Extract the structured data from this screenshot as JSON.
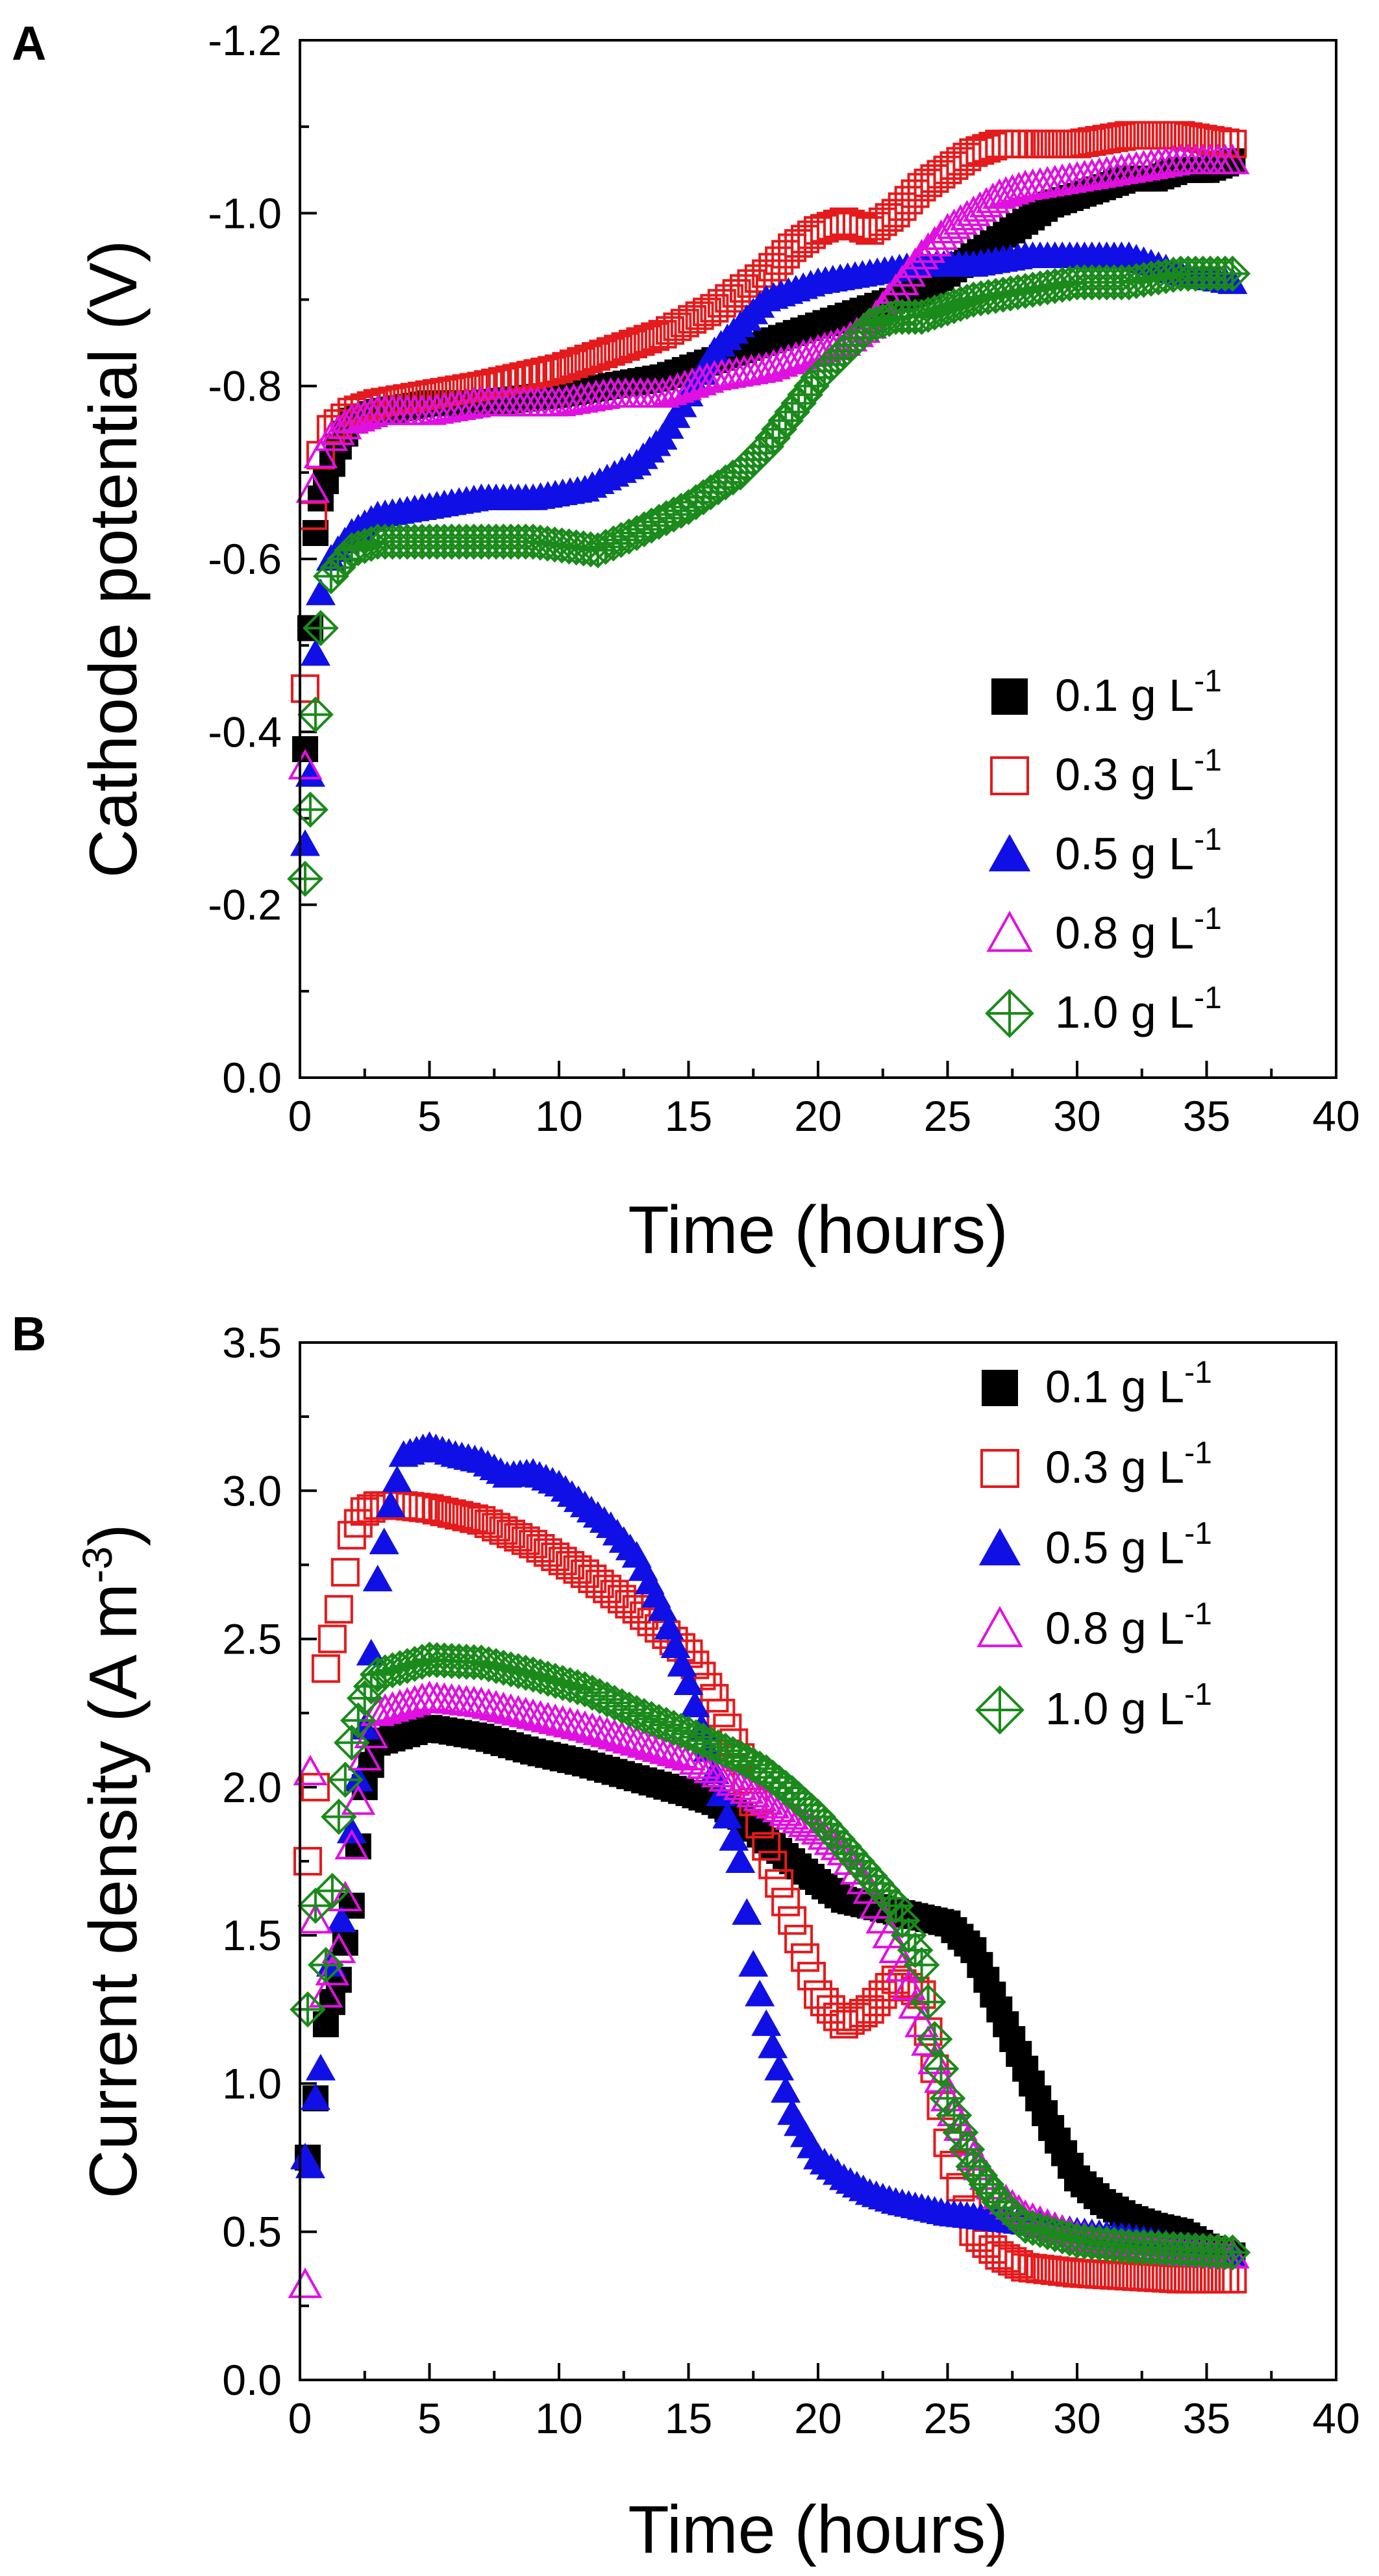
{
  "chart_data": [
    {
      "type": "scatter",
      "panel_label": "A",
      "title": "",
      "xlabel": "Time (hours)",
      "ylabel": "Cathode potential (V)",
      "xlim": [
        0,
        40
      ],
      "ylim": [
        0,
        -1.2
      ],
      "y_inverted": true,
      "xticks": [
        0,
        5,
        10,
        15,
        20,
        25,
        30,
        35,
        40
      ],
      "xtick_labels": [
        "0",
        "5",
        "10",
        "15",
        "20",
        "25",
        "30",
        "35",
        "40"
      ],
      "yticks": [
        0,
        -0.2,
        -0.4,
        -0.6,
        -0.8,
        -1.0,
        -1.2
      ],
      "ytick_labels": [
        "0.0",
        "-0.2",
        "-0.4",
        "-0.6",
        "-0.8",
        "-1.0",
        "-1.2"
      ],
      "legend_position": "lower-right",
      "series": [
        {
          "name": "0.1 g L",
          "superscript": "-1",
          "marker": "filled-square",
          "color": "#000000",
          "x": [
            0.2,
            0.4,
            0.6,
            0.8,
            1.0,
            1.5,
            2,
            3,
            5,
            7,
            10,
            12,
            14,
            16,
            18,
            20,
            22,
            24,
            25,
            26,
            27,
            28,
            29,
            30,
            31,
            32,
            33,
            34,
            35,
            36
          ],
          "y": [
            -0.38,
            -0.52,
            -0.63,
            -0.67,
            -0.69,
            -0.73,
            -0.76,
            -0.77,
            -0.78,
            -0.78,
            -0.79,
            -0.8,
            -0.81,
            -0.83,
            -0.85,
            -0.87,
            -0.89,
            -0.91,
            -0.93,
            -0.95,
            -0.97,
            -0.99,
            -1.01,
            -1.02,
            -1.03,
            -1.04,
            -1.04,
            -1.05,
            -1.05,
            -1.06
          ]
        },
        {
          "name": "0.3 g L",
          "superscript": "-1",
          "marker": "open-square",
          "color": "#e41a1c",
          "x": [
            0.2,
            0.5,
            0.8,
            1.2,
            2,
            3,
            5,
            7,
            10,
            12,
            14,
            16,
            18,
            19,
            20,
            21,
            22,
            23,
            24,
            25,
            26,
            27,
            28,
            30,
            32,
            34,
            36
          ],
          "y": [
            -0.45,
            -0.65,
            -0.72,
            -0.75,
            -0.77,
            -0.78,
            -0.79,
            -0.8,
            -0.82,
            -0.84,
            -0.86,
            -0.89,
            -0.93,
            -0.96,
            -0.98,
            -0.99,
            -0.98,
            -1.0,
            -1.03,
            -1.05,
            -1.07,
            -1.08,
            -1.08,
            -1.08,
            -1.09,
            -1.09,
            -1.08
          ]
        },
        {
          "name": "0.5 g L",
          "superscript": "-1",
          "marker": "filled-triangle",
          "color": "#1010e6",
          "x": [
            0.2,
            0.4,
            0.6,
            0.8,
            1.2,
            2,
            3,
            5,
            7,
            9,
            11,
            13,
            14,
            15,
            16,
            17,
            18,
            20,
            22,
            24,
            26,
            28,
            30,
            32,
            34,
            36
          ],
          "y": [
            -0.27,
            -0.35,
            -0.49,
            -0.56,
            -0.6,
            -0.63,
            -0.65,
            -0.66,
            -0.67,
            -0.67,
            -0.68,
            -0.71,
            -0.74,
            -0.79,
            -0.84,
            -0.87,
            -0.9,
            -0.92,
            -0.93,
            -0.94,
            -0.94,
            -0.95,
            -0.95,
            -0.95,
            -0.93,
            -0.92
          ]
        },
        {
          "name": "0.8 g L",
          "superscript": "-1",
          "marker": "open-triangle",
          "color": "#e010e0",
          "x": [
            0.2,
            0.5,
            0.8,
            1.2,
            2,
            3,
            5,
            7,
            10,
            12,
            14,
            16,
            18,
            20,
            21,
            22,
            23,
            24,
            25,
            26,
            27,
            28,
            30,
            32,
            34,
            36
          ],
          "y": [
            -0.36,
            -0.68,
            -0.72,
            -0.74,
            -0.76,
            -0.77,
            -0.77,
            -0.78,
            -0.78,
            -0.79,
            -0.79,
            -0.81,
            -0.82,
            -0.84,
            -0.85,
            -0.87,
            -0.91,
            -0.95,
            -0.98,
            -1.0,
            -1.02,
            -1.03,
            -1.04,
            -1.05,
            -1.06,
            -1.06
          ]
        },
        {
          "name": "1.0 g L",
          "superscript": "-1",
          "marker": "open-diamond-cross",
          "color": "#1a8a1a",
          "x": [
            0.2,
            0.4,
            0.6,
            0.8,
            1.2,
            2,
            3,
            5,
            7,
            9,
            11.5,
            13,
            15,
            17,
            18,
            19,
            20,
            21,
            22,
            23,
            24,
            25,
            26,
            28,
            30,
            32,
            34,
            36
          ],
          "y": [
            -0.23,
            -0.31,
            -0.42,
            -0.52,
            -0.58,
            -0.61,
            -0.62,
            -0.62,
            -0.62,
            -0.62,
            -0.61,
            -0.63,
            -0.66,
            -0.7,
            -0.73,
            -0.77,
            -0.81,
            -0.84,
            -0.87,
            -0.88,
            -0.88,
            -0.89,
            -0.9,
            -0.91,
            -0.92,
            -0.92,
            -0.93,
            -0.93
          ]
        }
      ]
    },
    {
      "type": "scatter",
      "panel_label": "B",
      "title": "",
      "xlabel": "Time (hours)",
      "ylabel": "Current density (A m",
      "ylabel_superscript": "-3",
      "ylabel_suffix": ")",
      "xlim": [
        0,
        40
      ],
      "ylim": [
        0,
        3.5
      ],
      "y_inverted": false,
      "xticks": [
        0,
        5,
        10,
        15,
        20,
        25,
        30,
        35,
        40
      ],
      "xtick_labels": [
        "0",
        "5",
        "10",
        "15",
        "20",
        "25",
        "30",
        "35",
        "40"
      ],
      "yticks": [
        0,
        0.5,
        1.0,
        1.5,
        2.0,
        2.5,
        3.0,
        3.5
      ],
      "ytick_labels": [
        "0.0",
        "0.5",
        "1.0",
        "1.5",
        "2.0",
        "2.5",
        "3.0",
        "3.5"
      ],
      "legend_position": "top-right",
      "series": [
        {
          "name": "0.1 g L",
          "superscript": "-1",
          "marker": "filled-square",
          "color": "#000000",
          "x": [
            0.3,
            0.6,
            1.0,
            1.5,
            2.0,
            2.5,
            3,
            5,
            7,
            9,
            11,
            13,
            15,
            16,
            17,
            18,
            19,
            20,
            21,
            22,
            23,
            24,
            25,
            26,
            27,
            28,
            29,
            30,
            31,
            32,
            33,
            34,
            35,
            36
          ],
          "y": [
            0.75,
            0.95,
            1.2,
            1.35,
            1.6,
            2.0,
            2.15,
            2.2,
            2.17,
            2.12,
            2.08,
            2.03,
            1.98,
            1.95,
            1.9,
            1.82,
            1.75,
            1.68,
            1.62,
            1.6,
            1.58,
            1.56,
            1.54,
            1.45,
            1.25,
            1.05,
            0.85,
            0.68,
            0.6,
            0.55,
            0.52,
            0.5,
            0.45,
            0.42
          ]
        },
        {
          "name": "0.3 g L",
          "superscript": "-1",
          "marker": "open-square",
          "color": "#e41a1c",
          "x": [
            0.3,
            0.6,
            1.0,
            1.5,
            2.0,
            2.5,
            3,
            4,
            5,
            7,
            9,
            11,
            13,
            15,
            16,
            17,
            18,
            19,
            20,
            21,
            22,
            23,
            24,
            25,
            26,
            27,
            28,
            30,
            32,
            34,
            36
          ],
          "y": [
            1.75,
            2.0,
            2.4,
            2.6,
            2.85,
            2.93,
            2.95,
            2.95,
            2.94,
            2.9,
            2.82,
            2.72,
            2.6,
            2.45,
            2.3,
            2.1,
            1.8,
            1.55,
            1.3,
            1.2,
            1.25,
            1.35,
            1.3,
            0.8,
            0.5,
            0.42,
            0.38,
            0.36,
            0.35,
            0.34,
            0.34
          ]
        },
        {
          "name": "0.5 g L",
          "superscript": "-1",
          "marker": "filled-triangle",
          "color": "#1010e6",
          "x": [
            0.2,
            0.4,
            0.6,
            0.8,
            1.2,
            1.6,
            2.0,
            2.5,
            3.0,
            3.5,
            4,
            5,
            6,
            7,
            8,
            9,
            10,
            11,
            12,
            13,
            14,
            15,
            16,
            17,
            17.5,
            18,
            18.5,
            19,
            20,
            21,
            22,
            23,
            24,
            25,
            26,
            28,
            30,
            32,
            34,
            36
          ],
          "y": [
            0.75,
            0.72,
            0.95,
            1.05,
            1.4,
            1.55,
            1.85,
            2.2,
            2.7,
            2.95,
            3.12,
            3.15,
            3.12,
            3.1,
            3.05,
            3.06,
            3.02,
            2.95,
            2.88,
            2.78,
            2.6,
            2.35,
            2.05,
            1.75,
            1.4,
            1.2,
            1.05,
            0.9,
            0.75,
            0.68,
            0.63,
            0.6,
            0.58,
            0.56,
            0.55,
            0.53,
            0.5,
            0.48,
            0.45,
            0.42
          ]
        },
        {
          "name": "0.8 g L",
          "superscript": "-1",
          "marker": "open-triangle",
          "color": "#e010e0",
          "x": [
            0.2,
            0.4,
            0.6,
            1.0,
            1.5,
            2.0,
            2.5,
            3,
            5,
            7,
            9,
            11,
            13,
            15,
            17,
            18,
            19,
            20,
            21,
            22,
            23,
            24,
            25,
            26,
            27,
            28,
            30,
            32,
            34,
            36
          ],
          "y": [
            0.32,
            2.05,
            1.55,
            1.3,
            1.45,
            1.8,
            2.1,
            2.25,
            2.3,
            2.28,
            2.24,
            2.2,
            2.15,
            2.1,
            2.0,
            1.95,
            1.9,
            1.85,
            1.78,
            1.65,
            1.45,
            1.2,
            0.95,
            0.75,
            0.62,
            0.55,
            0.48,
            0.45,
            0.43,
            0.42
          ]
        },
        {
          "name": "1.0 g L",
          "superscript": "-1",
          "marker": "open-diamond-cross",
          "color": "#1a8a1a",
          "x": [
            0.3,
            0.6,
            1.0,
            1.5,
            2.0,
            2.5,
            3,
            5,
            7,
            9,
            11,
            13,
            15,
            17,
            18,
            19,
            20,
            21,
            22,
            23,
            24,
            24.5,
            25,
            26,
            27,
            28,
            30,
            32,
            34,
            36
          ],
          "y": [
            1.25,
            1.6,
            1.4,
            1.9,
            2.15,
            2.3,
            2.38,
            2.43,
            2.42,
            2.38,
            2.33,
            2.25,
            2.18,
            2.1,
            2.05,
            1.98,
            1.9,
            1.8,
            1.7,
            1.6,
            1.4,
            1.15,
            0.95,
            0.72,
            0.6,
            0.52,
            0.47,
            0.45,
            0.44,
            0.43
          ]
        }
      ]
    }
  ]
}
